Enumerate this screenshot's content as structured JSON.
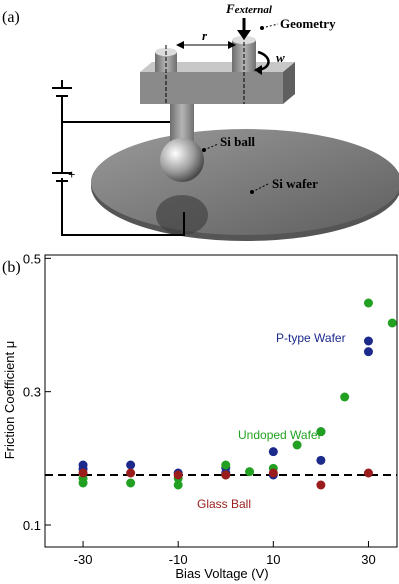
{
  "panel_a": {
    "label": "(a)",
    "force": "F",
    "force_sub": "external",
    "geometry": "Geometry",
    "r": "r",
    "w": "w",
    "si_ball": "Si ball",
    "si_wafer": "Si wafer",
    "plus": "+"
  },
  "chart_data": {
    "type": "scatter",
    "panel_label": "(b)",
    "x_label": "Bias Voltage (V)",
    "y_label": "Friction Coefficient μ",
    "xlim": [
      -38,
      36
    ],
    "xticks": [
      -30,
      -10,
      10,
      30
    ],
    "ylim": [
      0.067,
      0.505
    ],
    "yticks": [
      0.1,
      0.3,
      0.5
    ],
    "reference_line": 0.175,
    "series": [
      {
        "name": "P-type Wafer",
        "color": "#1c2a8c",
        "x": [
          -30,
          -30,
          -20,
          -10,
          0,
          0,
          10,
          10,
          20,
          20,
          30,
          30
        ],
        "values": [
          0.19,
          0.184,
          0.19,
          0.178,
          0.186,
          0.178,
          0.21,
          0.175,
          0.197,
          0.24,
          0.376,
          0.36
        ]
      },
      {
        "name": "Undoped Wafer",
        "color": "#22a022",
        "x": [
          -30,
          -30,
          -20,
          -10,
          -10,
          0,
          0,
          5,
          10,
          15,
          20,
          25,
          30,
          35
        ],
        "values": [
          0.163,
          0.17,
          0.163,
          0.16,
          0.17,
          0.19,
          0.175,
          0.18,
          0.185,
          0.22,
          0.24,
          0.292,
          0.433,
          0.403
        ]
      },
      {
        "name": "Glass Ball",
        "color": "#9a1c1c",
        "x": [
          -30,
          -20,
          -10,
          0,
          10,
          20,
          30
        ],
        "values": [
          0.178,
          0.178,
          0.175,
          0.175,
          0.178,
          0.16,
          0.178
        ]
      }
    ]
  }
}
